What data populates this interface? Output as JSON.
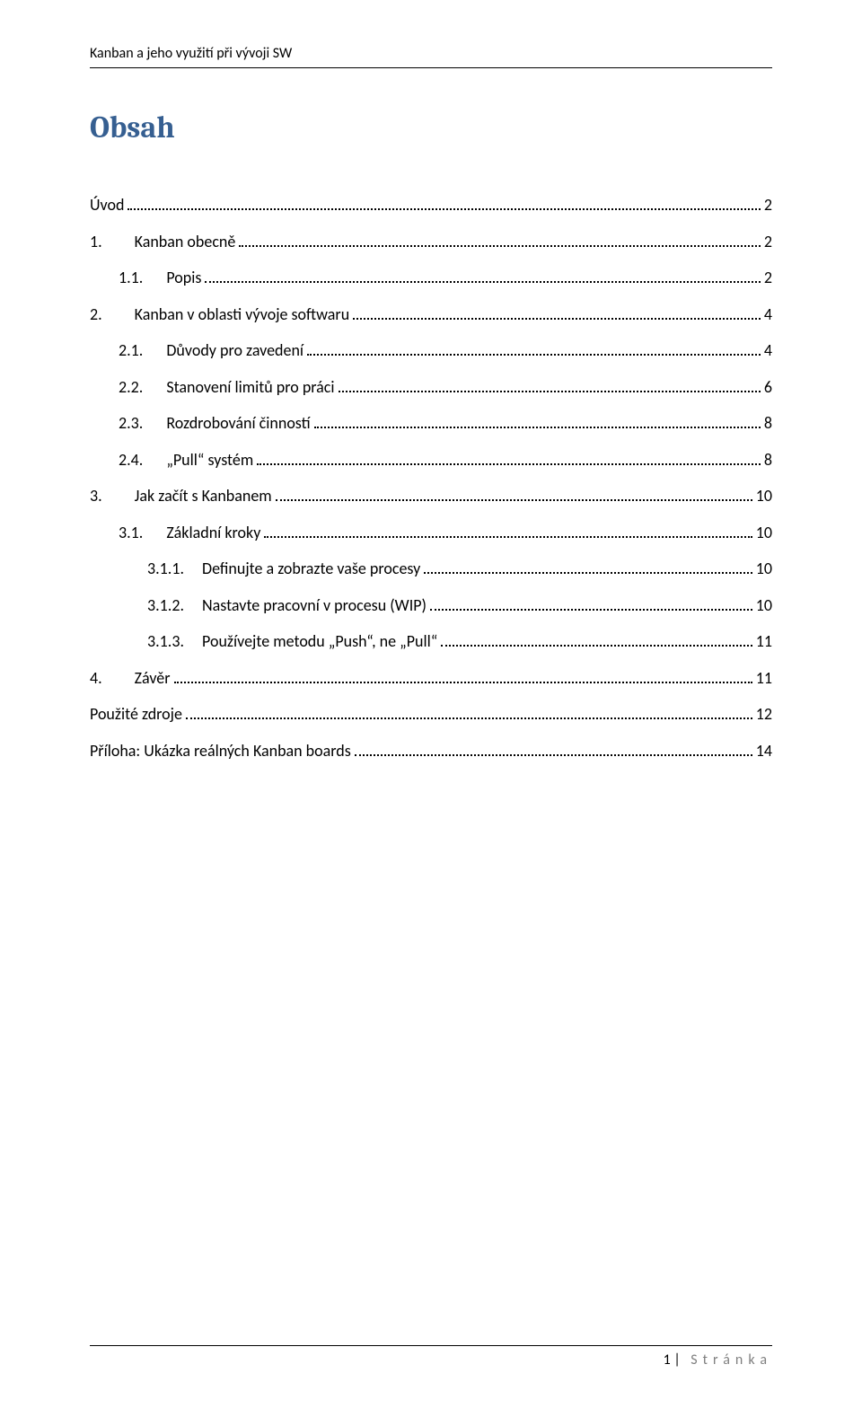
{
  "header": {
    "text": "Kanban a jeho využití při vývoji SW"
  },
  "title": "Obsah",
  "toc": [
    {
      "indent": 0,
      "num": "",
      "label": "Úvod",
      "page": "2"
    },
    {
      "indent": 0,
      "num": "1.",
      "label": "Kanban obecně",
      "page": "2"
    },
    {
      "indent": 1,
      "num": "1.1.",
      "label": "Popis",
      "page": "2"
    },
    {
      "indent": 0,
      "num": "2.",
      "label": "Kanban v oblasti vývoje softwaru",
      "page": "4"
    },
    {
      "indent": 1,
      "num": "2.1.",
      "label": "Důvody pro zavedení",
      "page": "4"
    },
    {
      "indent": 1,
      "num": "2.2.",
      "label": "Stanovení limitů pro práci",
      "page": "6"
    },
    {
      "indent": 1,
      "num": "2.3.",
      "label": "Rozdrobování činností",
      "page": "8"
    },
    {
      "indent": 1,
      "num": "2.4.",
      "label": "„Pull“ systém",
      "page": "8"
    },
    {
      "indent": 0,
      "num": "3.",
      "label": "Jak začít s Kanbanem",
      "page": "10"
    },
    {
      "indent": 1,
      "num": "3.1.",
      "label": "Základní kroky",
      "page": "10"
    },
    {
      "indent": 2,
      "num": "3.1.1.",
      "label": "Definujte a zobrazte vaše procesy",
      "page": "10"
    },
    {
      "indent": 2,
      "num": "3.1.2.",
      "label": "Nastavte pracovní v procesu (WIP)",
      "page": "10"
    },
    {
      "indent": 2,
      "num": "3.1.3.",
      "label": "Používejte metodu „Push“, ne „Pull“",
      "page": "11"
    },
    {
      "indent": 0,
      "num": "4.",
      "label": "Závěr",
      "page": "11"
    },
    {
      "indent": 0,
      "num": "",
      "label": "Použité zdroje",
      "page": "12"
    },
    {
      "indent": 0,
      "num": "",
      "label": "Příloha: Ukázka reálných Kanban boards",
      "page": "14"
    }
  ],
  "footer": {
    "page_number": "1",
    "page_label": "Stránka"
  },
  "colors": {
    "heading": "#365f91",
    "text": "#000000",
    "footer_label": "#7f7f7f",
    "background": "#ffffff"
  },
  "typography": {
    "body_font": "Calibri",
    "heading_font": "Cambria",
    "title_fontsize_pt": 26,
    "body_fontsize_pt": 13
  }
}
